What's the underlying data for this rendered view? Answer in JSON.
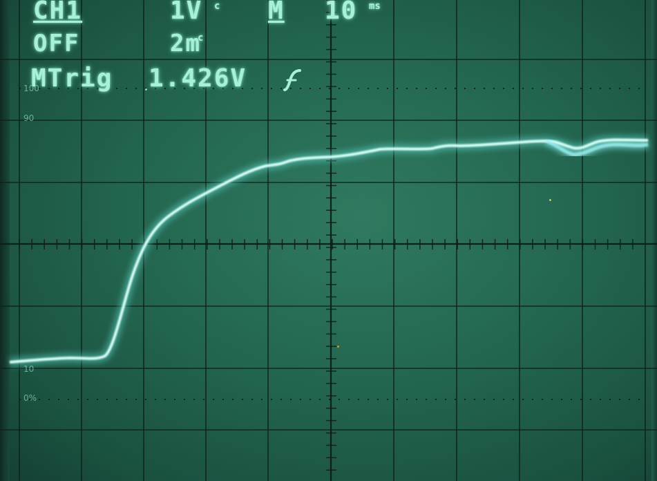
{
  "channel": {
    "label": "CH1",
    "coupling": "OFF",
    "volts_per_div": "1V",
    "volts_unit": "c",
    "second_range": "2m",
    "second_unit": "c"
  },
  "timebase": {
    "mode": "M",
    "value": "10",
    "unit": "ms"
  },
  "trigger": {
    "label": "MTrig",
    "level": "1.426V",
    "slope": "rising-edge-icon"
  },
  "graticule_percent_labels": {
    "p100": "100",
    "p90": "90",
    "p10": "10",
    "p0": "0%"
  },
  "colors": {
    "screen": "#23664f",
    "grid": "#0e1e18",
    "trace": "#bff5ea",
    "glow": "#5fd9d0",
    "text": "#a8f0d8"
  }
}
